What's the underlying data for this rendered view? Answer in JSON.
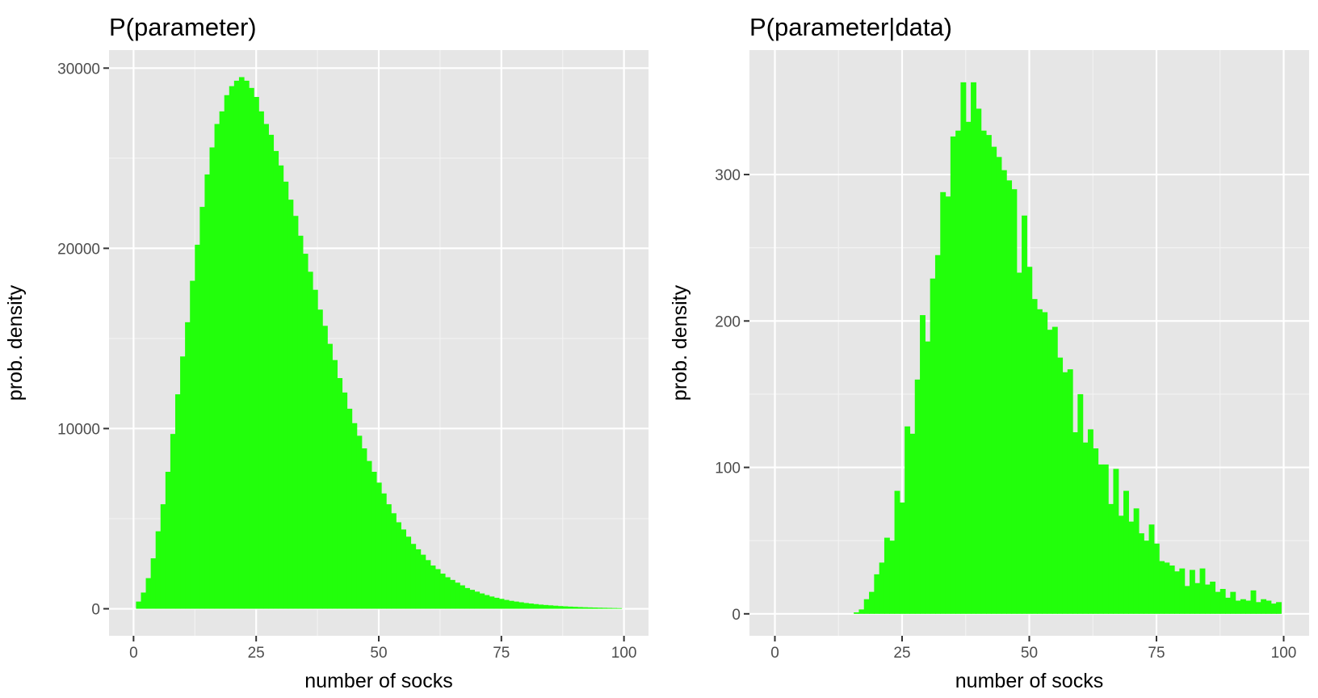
{
  "chart_data": [
    {
      "type": "bar",
      "title": "P(parameter)",
      "xlabel": "number of socks",
      "ylabel": "prob. density",
      "xlim": [
        -5,
        105
      ],
      "ylim": [
        -1500,
        31000
      ],
      "xticks": [
        0,
        25,
        50,
        75,
        100
      ],
      "xtick_labels": [
        "0",
        "25",
        "50",
        "75",
        "100"
      ],
      "yticks": [
        0,
        10000,
        20000,
        30000
      ],
      "ytick_labels": [
        "0",
        "10000",
        "20000",
        "30000"
      ],
      "grid": true,
      "bar_color": "#22ff0b",
      "bin_start": 0.5,
      "bin_width": 1,
      "values": [
        400,
        900,
        1700,
        2800,
        4300,
        5800,
        7600,
        9700,
        11900,
        14000,
        15900,
        18200,
        20200,
        22300,
        24100,
        25600,
        26900,
        27600,
        28500,
        29000,
        29300,
        29500,
        29300,
        28900,
        28400,
        27600,
        26900,
        26300,
        25400,
        24600,
        23700,
        22700,
        21800,
        20700,
        19700,
        18700,
        17700,
        16600,
        15700,
        14700,
        13800,
        12800,
        12000,
        11100,
        10300,
        9600,
        8900,
        8200,
        7600,
        7000,
        6400,
        5800,
        5300,
        4800,
        4400,
        4000,
        3600,
        3300,
        3000,
        2700,
        2400,
        2200,
        1950,
        1750,
        1600,
        1450,
        1300,
        1150,
        1050,
        950,
        850,
        760,
        680,
        610,
        550,
        490,
        440,
        400,
        360,
        320,
        290,
        260,
        230,
        210,
        190,
        170,
        150,
        135,
        120,
        108,
        95,
        85,
        76,
        68,
        60,
        53,
        47,
        41,
        36
      ]
    },
    {
      "type": "bar",
      "title": "P(parameter|data)",
      "xlabel": "number of socks",
      "ylabel": "prob. density",
      "xlim": [
        -5,
        105
      ],
      "ylim": [
        -15,
        385
      ],
      "xticks": [
        0,
        25,
        50,
        75,
        100
      ],
      "xtick_labels": [
        "0",
        "25",
        "50",
        "75",
        "100"
      ],
      "yticks": [
        0,
        100,
        200,
        300
      ],
      "ytick_labels": [
        "0",
        "100",
        "200",
        "300"
      ],
      "grid": true,
      "bar_color": "#22ff0b",
      "bin_start": 15.5,
      "bin_width": 1,
      "values": [
        1,
        3,
        10,
        15,
        27,
        35,
        52,
        50,
        84,
        76,
        128,
        123,
        160,
        204,
        186,
        229,
        245,
        288,
        285,
        326,
        330,
        363,
        336,
        363,
        345,
        330,
        327,
        319,
        312,
        303,
        296,
        290,
        233,
        272,
        237,
        215,
        208,
        206,
        194,
        196,
        175,
        165,
        167,
        124,
        150,
        117,
        126,
        113,
        102,
        102,
        75,
        99,
        67,
        84,
        63,
        72,
        55,
        50,
        61,
        48,
        36,
        35,
        33,
        29,
        31,
        19,
        30,
        21,
        31,
        20,
        22,
        15,
        17,
        11,
        15,
        9,
        10,
        9,
        16,
        8,
        10,
        9,
        7,
        8
      ]
    }
  ]
}
